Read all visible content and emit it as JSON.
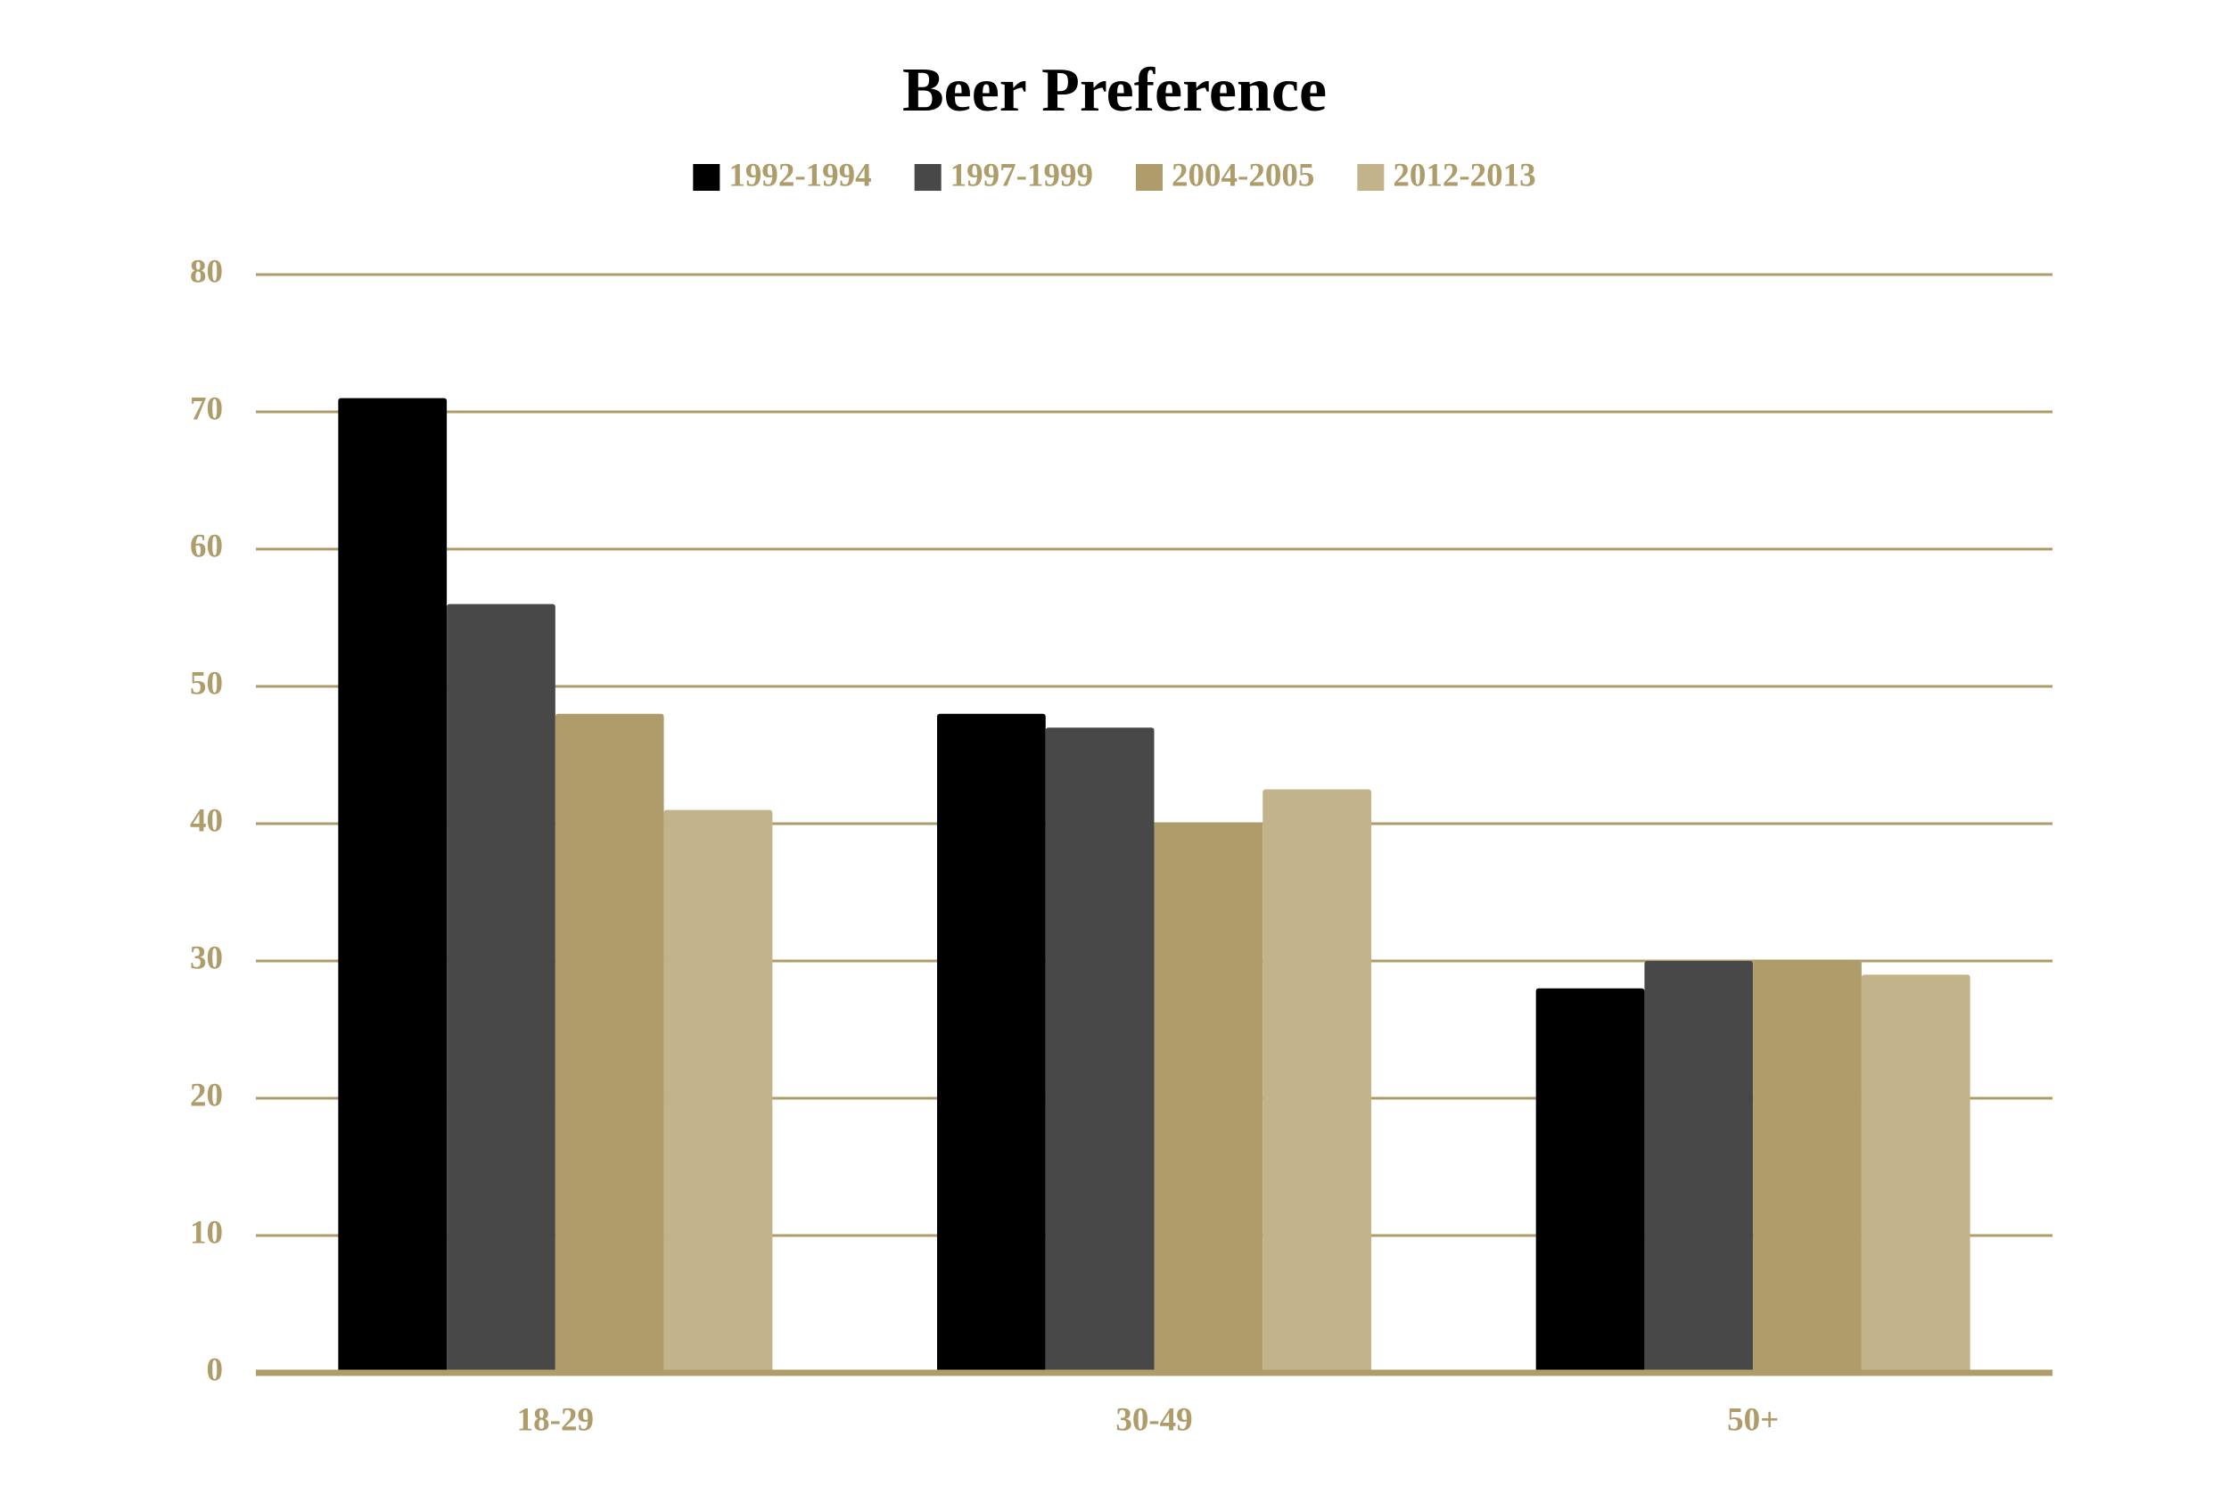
{
  "chart_data": {
    "type": "bar",
    "title": "Beer Preference",
    "categories": [
      "18-29",
      "30-49",
      "50+"
    ],
    "series": [
      {
        "name": "1992-1994",
        "color": "#000000",
        "values": [
          71,
          48,
          28
        ]
      },
      {
        "name": "1997-1999",
        "color": "#484848",
        "values": [
          56,
          47,
          30
        ]
      },
      {
        "name": "2004-2005",
        "color": "#ae9d6a",
        "values": [
          48,
          40,
          30
        ]
      },
      {
        "name": "2012-2013",
        "color": "#c2b38b",
        "values": [
          41,
          42.5,
          29
        ]
      }
    ],
    "ylim": [
      0,
      80
    ],
    "yticks": [
      0,
      10,
      20,
      30,
      40,
      50,
      60,
      70,
      80
    ],
    "grid": true,
    "legend": "top"
  }
}
